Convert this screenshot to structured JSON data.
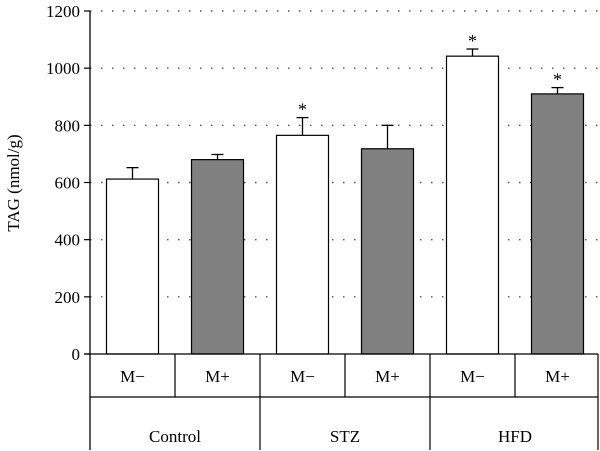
{
  "chart_data": {
    "type": "bar",
    "title": "",
    "xlabel": "",
    "ylabel": "TAG (nmol/g)",
    "ylim": [
      0,
      1200
    ],
    "yticks": [
      0,
      200,
      400,
      600,
      800,
      1000,
      1200
    ],
    "grid": "horizontal dotted",
    "groups": [
      "Control",
      "STZ",
      "HFD"
    ],
    "subgroups": [
      "M−",
      "M+"
    ],
    "bars": [
      {
        "group": "Control",
        "subgroup": "M−",
        "value": 612,
        "error": 40,
        "significant": false,
        "fill": "white"
      },
      {
        "group": "Control",
        "subgroup": "M+",
        "value": 680,
        "error": 18,
        "significant": false,
        "fill": "gray"
      },
      {
        "group": "STZ",
        "subgroup": "M−",
        "value": 765,
        "error": 62,
        "significant": true,
        "fill": "white"
      },
      {
        "group": "STZ",
        "subgroup": "M+",
        "value": 718,
        "error": 82,
        "significant": false,
        "fill": "gray"
      },
      {
        "group": "HFD",
        "subgroup": "M−",
        "value": 1042,
        "error": 25,
        "significant": true,
        "fill": "white"
      },
      {
        "group": "HFD",
        "subgroup": "M+",
        "value": 910,
        "error": 22,
        "significant": true,
        "fill": "gray"
      }
    ],
    "significance_marker": "*"
  },
  "colors": {
    "white_bar": "#ffffff",
    "gray_bar": "#808080",
    "axis": "#000000",
    "grid": "#555555"
  }
}
